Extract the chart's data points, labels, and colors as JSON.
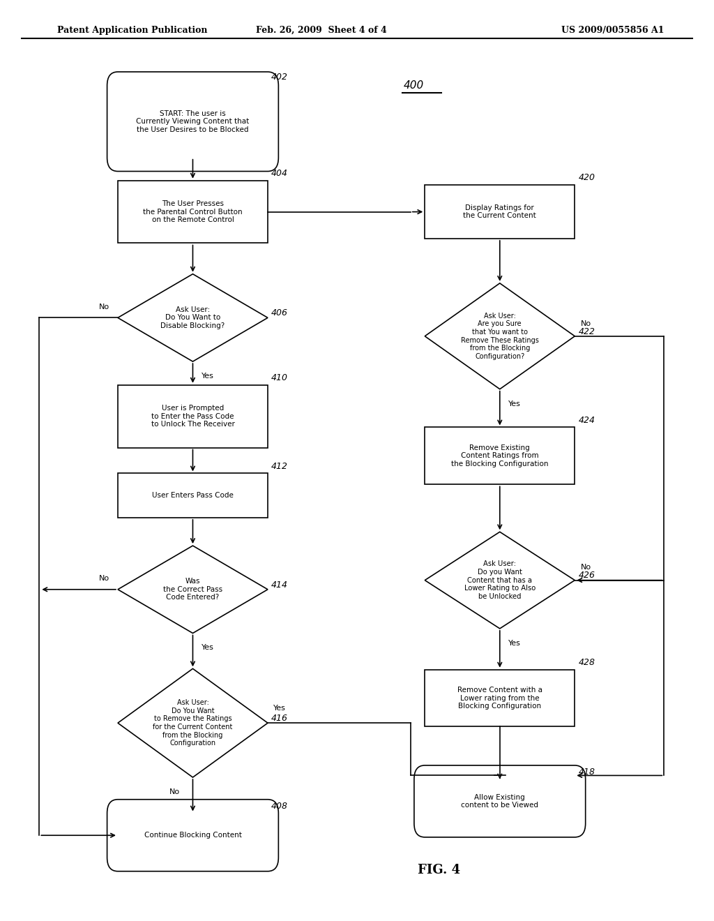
{
  "bg_color": "#ffffff",
  "header_left": "Patent Application Publication",
  "header_mid": "Feb. 26, 2009  Sheet 4 of 4",
  "header_right": "US 2009/0055856 A1",
  "fig_label": "FIG. 4",
  "diagram_label": "400"
}
